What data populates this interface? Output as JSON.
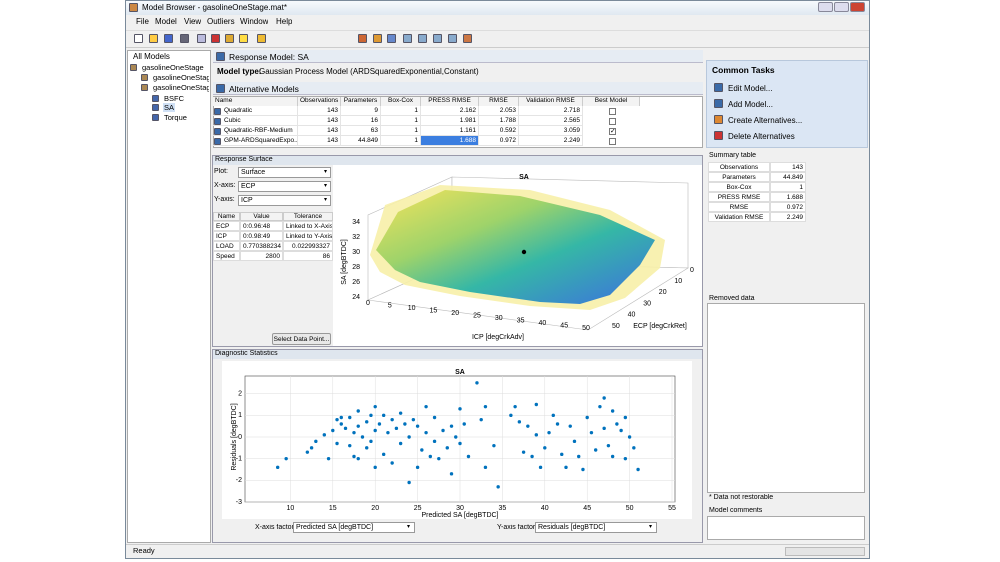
{
  "window": {
    "title": "Model Browser - gasolineOneStage.mat*"
  },
  "menu": [
    "File",
    "Model",
    "View",
    "Outliers",
    "Window",
    "Help"
  ],
  "tree": {
    "title": "All Models",
    "nodes": [
      "gasolineOneStage",
      "gasolineOneStageDo",
      "gasolineOneStageM",
      "BSFC",
      "SA",
      "Torque"
    ],
    "selected": 4
  },
  "response_model": {
    "title": "Response Model: SA",
    "type_label": "Model type:",
    "type_value": "Gaussian Process Model (ARDSquaredExponential,Constant)"
  },
  "alternatives": {
    "title": "Alternative Models",
    "columns": [
      "Name",
      "Observations",
      "Parameters",
      "Box-Cox",
      "PRESS RMSE",
      "RMSE",
      "Validation RMSE",
      "Best Model"
    ],
    "rows": [
      [
        "Quadratic",
        143,
        9,
        1,
        2.162,
        2.053,
        2.718,
        false
      ],
      [
        "Cubic",
        143,
        16,
        1,
        1.981,
        1.788,
        2.565,
        false
      ],
      [
        "Quadratic-RBF-Medium",
        143,
        63,
        1,
        1.161,
        0.592,
        3.059,
        true
      ],
      [
        "GPM-ARDSquaredExpo...",
        143,
        44.849,
        1,
        1.688,
        0.972,
        2.249,
        false
      ]
    ],
    "selected_row": 3
  },
  "response_surface": {
    "title": "Response Surface",
    "controls": [
      {
        "label": "Plot:",
        "value": "Surface"
      },
      {
        "label": "X-axis:",
        "value": "ECP"
      },
      {
        "label": "Y-axis:",
        "value": "ICP"
      }
    ],
    "columns": [
      "Name",
      "Value",
      "Tolerance"
    ],
    "rows": [
      [
        "ECP",
        "0:0.96:48",
        "Linked to X-Axis"
      ],
      [
        "ICP",
        "0:0.98:49",
        "Linked to Y-Axis"
      ],
      [
        "LOAD",
        0.770388234,
        0.022993327
      ],
      [
        "Speed",
        2800,
        86
      ]
    ],
    "button": "Select Data Point...",
    "plot": {
      "title": "SA",
      "z_label": "SA [degBTDC]",
      "x_label": "ICP [degCrkAdv]",
      "y_label": "ECP [degCrkRet]",
      "z_ticks": [
        24,
        26,
        28,
        30,
        32,
        34
      ],
      "x_ticks": [
        0,
        5,
        10,
        15,
        20,
        25,
        30,
        35,
        40,
        45,
        50
      ],
      "y_ticks": [
        0,
        10,
        20,
        30,
        40,
        50
      ]
    }
  },
  "diagnostics": {
    "title": "Diagnostic Statistics",
    "x_factor_label": "X-axis factor:",
    "x_factor": "Predicted SA [degBTDC]",
    "y_factor_label": "Y-axis factor:",
    "y_factor": "Residuals [degBTDC]"
  },
  "chart_data": {
    "type": "scatter",
    "title": "SA",
    "x_label": "Predicted SA [degBTDC]",
    "y_label": "Residuals [degBTDC]",
    "xlim": [
      5,
      55
    ],
    "xticks": [
      10,
      15,
      20,
      25,
      30,
      35,
      40,
      45,
      50,
      55
    ],
    "ylim": [
      -3,
      3
    ],
    "yticks": [
      -3,
      -2,
      -1,
      0,
      1,
      2
    ],
    "grid": true,
    "color": "#0072bd",
    "x": [
      8.5,
      9.5,
      12,
      12.5,
      13,
      14,
      14.5,
      15,
      15.5,
      15.5,
      16,
      16,
      16.5,
      17,
      17,
      17.5,
      17.5,
      18,
      18,
      18,
      18.5,
      19,
      19,
      19.5,
      19.5,
      20,
      20,
      20,
      20.5,
      21,
      21,
      21.5,
      22,
      22,
      22.5,
      23,
      23,
      23.5,
      24,
      24,
      24.5,
      25,
      25,
      25.5,
      26,
      26,
      26.5,
      27,
      27,
      27.5,
      28,
      28.5,
      29,
      29,
      29.5,
      30,
      30,
      30.5,
      31,
      32,
      32.5,
      33,
      33,
      34,
      34.5,
      36,
      36.5,
      37,
      37.5,
      38,
      38.5,
      39,
      39,
      39.5,
      40,
      40.5,
      41,
      41.5,
      42,
      42.5,
      43,
      43.5,
      44,
      44.5,
      45,
      45.5,
      46,
      46.5,
      47,
      47,
      47.5,
      48,
      48,
      48.5,
      49,
      49.5,
      49.5,
      50,
      50.5,
      51
    ],
    "values": [
      -1.4,
      -1.0,
      -0.7,
      -0.5,
      -0.2,
      0.1,
      -1.0,
      0.3,
      0.8,
      -0.3,
      0.6,
      0.9,
      0.4,
      0.9,
      -0.4,
      0.2,
      -0.9,
      0.5,
      1.2,
      -1.0,
      0.0,
      0.7,
      -0.5,
      1.0,
      -0.2,
      1.4,
      0.3,
      -1.4,
      0.6,
      -0.8,
      1.0,
      0.2,
      0.8,
      -1.2,
      0.4,
      1.1,
      -0.3,
      0.6,
      -2.1,
      0.0,
      0.8,
      0.5,
      -1.4,
      -0.6,
      0.2,
      1.4,
      -0.9,
      0.9,
      -0.2,
      -1.0,
      0.3,
      -0.5,
      0.5,
      -1.7,
      0.0,
      -0.3,
      1.3,
      0.6,
      -0.9,
      2.5,
      0.8,
      1.4,
      -1.4,
      -0.4,
      -2.3,
      1.0,
      1.4,
      0.7,
      -0.7,
      0.5,
      -0.9,
      1.5,
      0.1,
      -1.4,
      -0.5,
      0.2,
      1.0,
      0.6,
      -0.8,
      -1.4,
      0.5,
      -0.2,
      -0.9,
      -1.5,
      0.9,
      0.2,
      -0.6,
      1.4,
      1.8,
      0.4,
      -0.4,
      1.2,
      -0.9,
      0.6,
      0.3,
      0.9,
      -1.0,
      0.0,
      -0.5,
      -1.5
    ]
  },
  "common_tasks": {
    "title": "Common Tasks",
    "items": [
      "Edit Model...",
      "Add Model...",
      "Create Alternatives...",
      "Delete Alternatives"
    ]
  },
  "summary": {
    "title": "Summary table",
    "rows": [
      [
        "Observations",
        143
      ],
      [
        "Parameters",
        44.849
      ],
      [
        "Box-Cox",
        1
      ],
      [
        "PRESS RMSE",
        1.688
      ],
      [
        "RMSE",
        0.972
      ],
      [
        "Validation RMSE",
        2.249
      ]
    ]
  },
  "removed": {
    "title": "Removed data",
    "note": "* Data not restorable"
  },
  "comments": {
    "title": "Model comments"
  },
  "status": "Ready"
}
